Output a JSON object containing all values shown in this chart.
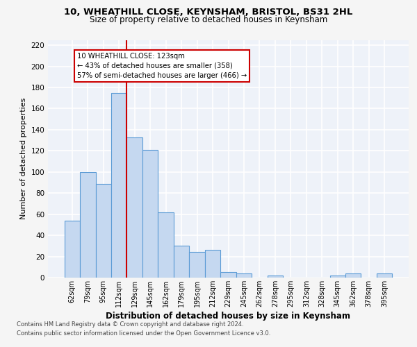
{
  "title": "10, WHEATHILL CLOSE, KEYNSHAM, BRISTOL, BS31 2HL",
  "subtitle": "Size of property relative to detached houses in Keynsham",
  "xlabel": "Distribution of detached houses by size in Keynsham",
  "ylabel": "Number of detached properties",
  "categories": [
    "62sqm",
    "79sqm",
    "95sqm",
    "112sqm",
    "129sqm",
    "145sqm",
    "162sqm",
    "179sqm",
    "195sqm",
    "212sqm",
    "229sqm",
    "245sqm",
    "262sqm",
    "278sqm",
    "295sqm",
    "312sqm",
    "328sqm",
    "345sqm",
    "362sqm",
    "378sqm",
    "395sqm"
  ],
  "values": [
    54,
    100,
    89,
    175,
    133,
    121,
    62,
    30,
    24,
    26,
    5,
    4,
    0,
    2,
    0,
    0,
    0,
    2,
    4,
    0,
    4
  ],
  "bar_color": "#c5d8f0",
  "bar_edge_color": "#5b9bd5",
  "red_line_x": 3.5,
  "annotation_text": "10 WHEATHILL CLOSE: 123sqm\n← 43% of detached houses are smaller (358)\n57% of semi-detached houses are larger (466) →",
  "annotation_box_color": "#ffffff",
  "annotation_box_edge_color": "#cc0000",
  "ylim": [
    0,
    225
  ],
  "yticks": [
    0,
    20,
    40,
    60,
    80,
    100,
    120,
    140,
    160,
    180,
    200,
    220
  ],
  "background_color": "#eef2f9",
  "grid_color": "#ffffff",
  "footer_line1": "Contains HM Land Registry data © Crown copyright and database right 2024.",
  "footer_line2": "Contains public sector information licensed under the Open Government Licence v3.0."
}
